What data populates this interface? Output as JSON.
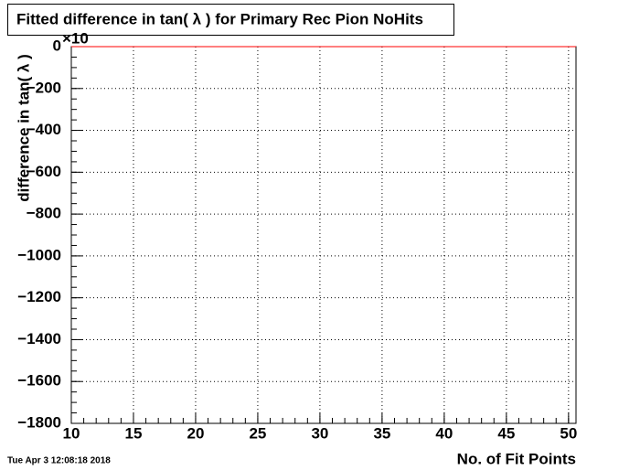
{
  "chart_data": {
    "type": "line",
    "title": "Fitted difference in tan( λ ) for Primary Rec Pion NoHits",
    "x_label": "No. of Fit Points",
    "y_label": "difference in tan( λ )",
    "y_multiplier": "×10",
    "timestamp": "Tue Apr  3 12:08:18 2018",
    "xlim": [
      10,
      50.6
    ],
    "xticks": [
      10,
      15,
      20,
      25,
      30,
      35,
      40,
      45,
      50
    ],
    "ylim": [
      -1800,
      0
    ],
    "yticks": [
      0,
      {
        "value": -200,
        "label": "−200"
      },
      {
        "value": -400,
        "label": "−400"
      },
      {
        "value": -600,
        "label": "−600"
      },
      {
        "value": -800,
        "label": "−800"
      },
      {
        "value": -1000,
        "label": "−1000"
      },
      {
        "value": -1200,
        "label": "−1200"
      },
      {
        "value": -1400,
        "label": "−1400"
      },
      {
        "value": -1600,
        "label": "−1600"
      },
      {
        "value": -1800,
        "label": "−1800"
      }
    ],
    "grid": true,
    "series": [
      {
        "color": "#ff0000",
        "x": [
          10,
          50.6
        ],
        "values": [
          0,
          0
        ]
      }
    ]
  }
}
